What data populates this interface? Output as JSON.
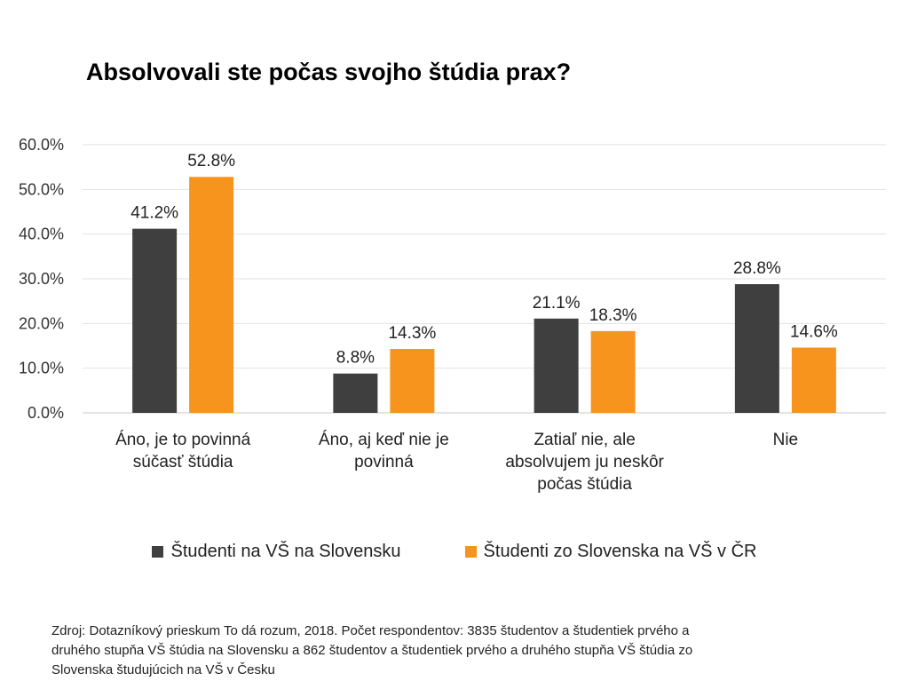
{
  "chart_data": {
    "type": "bar",
    "title": "Absolvovali ste počas svojho štúdia prax?",
    "categories": [
      [
        "Áno, je to povinná",
        "súčasť štúdia"
      ],
      [
        "Áno, aj keď nie je",
        "povinná"
      ],
      [
        "Zatiaľ nie, ale",
        "absolvujem ju neskôr",
        "počas štúdia"
      ],
      [
        "Nie"
      ]
    ],
    "series": [
      {
        "name": "Študenti na VŠ na Slovensku",
        "color": "#3f3f3f",
        "values": [
          41.2,
          8.8,
          21.1,
          28.8
        ],
        "labels": [
          "41.2%",
          "8.8%",
          "21.1%",
          "28.8%"
        ]
      },
      {
        "name": "Študenti zo Slovenska na VŠ v ČR",
        "color": "#f7941d",
        "values": [
          52.8,
          14.3,
          18.3,
          14.6
        ],
        "labels": [
          "52.8%",
          "14.3%",
          "18.3%",
          "14.6%"
        ]
      }
    ],
    "ylim": [
      0,
      60
    ],
    "yticks": [
      0,
      10,
      20,
      30,
      40,
      50,
      60
    ],
    "ytick_labels": [
      "0.0%",
      "10.0%",
      "20.0%",
      "30.0%",
      "40.0%",
      "50.0%",
      "60.0%"
    ],
    "grid": true,
    "legend": "bottom",
    "xlabel": "",
    "ylabel": ""
  },
  "source_note": "Zdroj: Dotazníkový prieskum To dá rozum, 2018. Počet respondentov: 3835 študentov a študentiek prvého a druhého stupňa VŠ štúdia na Slovensku a 862 študentov a študentiek prvého a druhého stupňa VŠ štúdia zo Slovenska študujúcich na VŠ v Česku"
}
